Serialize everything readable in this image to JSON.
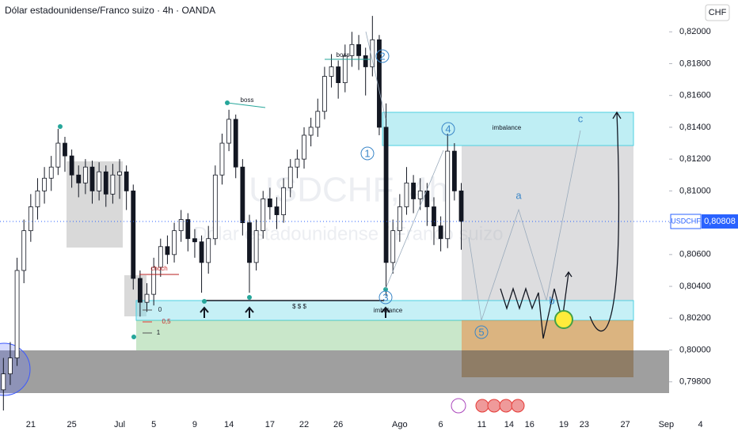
{
  "chart_data": {
    "type": "candlestick",
    "title": "Dólar estadounidense/Franco suizo · 4h · OANDA",
    "currency": "CHF",
    "symbol": "USDCHF",
    "watermark": [
      "USDCHF, 4h",
      "Dólar estadounidense / Franco suizo"
    ],
    "last_price": {
      "value": 0.80808,
      "label": "0,80808"
    },
    "annotations": [
      "boss",
      "boss",
      "choch",
      "0",
      "0,5",
      "1",
      "$ $ $",
      "imbalance",
      "imbalance",
      "1",
      "2",
      "3",
      "4",
      "5",
      "a",
      "b",
      "c"
    ],
    "categories": [
      null,
      null,
      null,
      null,
      "21",
      null,
      null,
      null,
      null,
      null,
      "25",
      null,
      null,
      null,
      null,
      null,
      null,
      "Jul",
      null,
      null,
      null,
      null,
      "5",
      null,
      null,
      null,
      null,
      null,
      "9",
      null,
      null,
      null,
      null,
      "14",
      null,
      null,
      null,
      null,
      null,
      "17",
      null,
      null,
      null,
      null,
      "22",
      null,
      null,
      null,
      null,
      "26",
      null,
      null,
      null,
      null,
      null,
      null,
      null,
      null,
      "Ago",
      null,
      null,
      null,
      null,
      null,
      "6",
      null,
      null,
      null,
      null,
      null,
      "11",
      null,
      null,
      null,
      "14",
      null,
      null,
      "16",
      null,
      null,
      null,
      null,
      "19",
      null,
      null,
      "23",
      null,
      null,
      null,
      null,
      null,
      "27",
      null,
      null,
      null,
      null,
      null,
      "Sep",
      null,
      null,
      null,
      null,
      "4",
      null,
      null,
      null,
      null,
      null
    ],
    "open": [
      0.7975,
      0.7985,
      0.7995,
      0.805,
      0.8075,
      0.809,
      0.81,
      0.8108,
      0.8115,
      0.813,
      0.8122,
      0.811,
      0.8105,
      0.8115,
      0.81,
      0.8112,
      0.8098,
      0.811,
      0.8112,
      0.81,
      0.8045,
      0.803,
      0.8035,
      0.8052,
      0.8065,
      0.806,
      0.8075,
      0.8082,
      0.807,
      0.8068,
      0.8055,
      0.807,
      0.811,
      0.813,
      0.8145,
      0.8115,
      0.808,
      0.8055,
      0.8075,
      0.8095,
      0.809,
      0.8085,
      0.8102,
      0.8115,
      0.812,
      0.8135,
      0.814,
      0.815,
      0.8172,
      0.8178,
      0.8168,
      0.8185,
      0.8192,
      0.8185,
      0.8178,
      0.8195,
      0.814,
      0.8055,
      0.8075,
      0.809,
      0.8105,
      0.8095,
      0.81,
      0.809,
      0.8078,
      0.807,
      0.8125,
      0.81,
      null,
      null,
      null,
      null,
      null,
      null,
      null,
      null,
      null,
      null,
      null,
      null,
      null,
      null,
      null,
      null,
      null,
      null,
      null,
      null,
      null,
      null,
      null,
      null,
      null,
      null,
      null,
      null,
      null,
      null,
      null,
      null,
      null,
      null,
      null,
      null,
      null,
      null,
      null,
      null
    ],
    "high": [
      0.7995,
      0.8005,
      0.8058,
      0.8082,
      0.8098,
      0.8108,
      0.8115,
      0.8122,
      0.8139,
      0.8134,
      0.8126,
      0.8116,
      0.812,
      0.8119,
      0.8118,
      0.8116,
      0.8117,
      0.812,
      0.8116,
      0.8104,
      0.805,
      0.8042,
      0.8058,
      0.807,
      0.8072,
      0.808,
      0.8088,
      0.8086,
      0.8076,
      0.8072,
      0.8078,
      0.8116,
      0.8136,
      0.8151,
      0.8148,
      0.812,
      0.8085,
      0.8082,
      0.81,
      0.8102,
      0.8096,
      0.8108,
      0.812,
      0.8126,
      0.814,
      0.8146,
      0.8158,
      0.8178,
      0.8186,
      0.8182,
      0.8192,
      0.82,
      0.8198,
      0.819,
      0.821,
      0.8198,
      0.8155,
      0.8082,
      0.8098,
      0.8115,
      0.811,
      0.8108,
      0.8105,
      0.8096,
      0.8084,
      0.8136,
      0.813,
      0.8105,
      null,
      null,
      null,
      null,
      null,
      null,
      null,
      null,
      null,
      null,
      null,
      null,
      null,
      null,
      null,
      null,
      null,
      null,
      null,
      null,
      null,
      null,
      null,
      null,
      null,
      null,
      null,
      null,
      null,
      null,
      null,
      null,
      null,
      null,
      null,
      null,
      null,
      null,
      null,
      null
    ],
    "low": [
      0.7962,
      0.7978,
      0.799,
      0.8042,
      0.8068,
      0.8082,
      0.8092,
      0.81,
      0.811,
      0.8112,
      0.8102,
      0.8096,
      0.8098,
      0.8092,
      0.8094,
      0.809,
      0.8092,
      0.8095,
      0.8088,
      0.8038,
      0.8021,
      0.8024,
      0.8028,
      0.8046,
      0.8054,
      0.8055,
      0.8068,
      0.8062,
      0.8058,
      0.8036,
      0.8048,
      0.8066,
      0.8104,
      0.8125,
      0.8108,
      0.8072,
      0.8036,
      0.805,
      0.807,
      0.8082,
      0.8076,
      0.808,
      0.8096,
      0.8108,
      0.8114,
      0.8128,
      0.8134,
      0.8145,
      0.8165,
      0.8158,
      0.8162,
      0.8178,
      0.8176,
      0.816,
      0.8172,
      0.8135,
      0.8034,
      0.8048,
      0.8068,
      0.8085,
      0.8086,
      0.8088,
      0.8078,
      0.8066,
      0.8062,
      0.8064,
      0.8094,
      0.8063,
      null,
      null,
      null,
      null,
      null,
      null,
      null,
      null,
      null,
      null,
      null,
      null,
      null,
      null,
      null,
      null,
      null,
      null,
      null,
      null,
      null,
      null,
      null,
      null,
      null,
      null,
      null,
      null,
      null,
      null,
      null,
      null,
      null,
      null,
      null,
      null,
      null,
      null,
      null,
      null
    ],
    "close": [
      0.7985,
      0.7995,
      0.805,
      0.8075,
      0.809,
      0.81,
      0.8108,
      0.8115,
      0.813,
      0.8122,
      0.811,
      0.8105,
      0.8115,
      0.81,
      0.8112,
      0.8098,
      0.811,
      0.8112,
      0.81,
      0.8045,
      0.803,
      0.8035,
      0.8052,
      0.8065,
      0.806,
      0.8075,
      0.8082,
      0.807,
      0.8068,
      0.8055,
      0.807,
      0.811,
      0.813,
      0.8145,
      0.8115,
      0.808,
      0.8055,
      0.8075,
      0.8095,
      0.809,
      0.8085,
      0.8102,
      0.8115,
      0.812,
      0.8135,
      0.814,
      0.815,
      0.8172,
      0.8178,
      0.8168,
      0.8185,
      0.8192,
      0.8185,
      0.8178,
      0.8195,
      0.814,
      0.8055,
      0.8075,
      0.809,
      0.8105,
      0.8095,
      0.81,
      0.809,
      0.8078,
      0.807,
      0.8125,
      0.81,
      0.80808,
      null,
      null,
      null,
      null,
      null,
      null,
      null,
      null,
      null,
      null,
      null,
      null,
      null,
      null,
      null,
      null,
      null,
      null,
      null,
      null,
      null,
      null,
      null,
      null,
      null,
      null,
      null,
      null,
      null,
      null,
      null,
      null,
      null,
      null,
      null,
      null,
      null,
      null,
      null,
      null
    ],
    "up_color": "#ffffff",
    "down_color": "#131722",
    "ylim": [
      0.7959,
      0.822
    ],
    "yticks": [
      {
        "value": 0.82,
        "label": "0,82000"
      },
      {
        "value": 0.818,
        "label": "0,81800"
      },
      {
        "value": 0.816,
        "label": "0,81600"
      },
      {
        "value": 0.814,
        "label": "0,81400"
      },
      {
        "value": 0.812,
        "label": "0,81200"
      },
      {
        "value": 0.81,
        "label": "0,81000"
      },
      {
        "value": 0.808,
        "label": "0,80800"
      },
      {
        "value": 0.806,
        "label": "0,80600"
      },
      {
        "value": 0.804,
        "label": "0,80400"
      },
      {
        "value": 0.802,
        "label": "0,80200"
      },
      {
        "value": 0.8,
        "label": "0,80000"
      },
      {
        "value": 0.798,
        "label": "0,79800"
      }
    ],
    "grid": false
  }
}
